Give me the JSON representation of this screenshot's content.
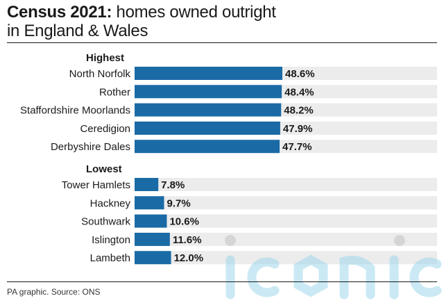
{
  "header": {
    "title_bold": "Census 2021:",
    "title_rest": " homes owned outright",
    "title_line2": "in England & Wales"
  },
  "footer": {
    "source": "PA graphic. Source: ONS"
  },
  "watermark": {
    "text": "iconic"
  },
  "colors": {
    "bar": "#1a6aa5",
    "track": "#ececec",
    "text": "#1a1a1a"
  },
  "chart_data": {
    "type": "bar",
    "orientation": "horizontal",
    "unit": "%",
    "xlim": [
      0,
      100
    ],
    "groups": [
      {
        "label": "Highest",
        "categories": [
          "North Norfolk",
          "Rother",
          "Staffordshire Moorlands",
          "Ceredigion",
          "Derbyshire Dales"
        ],
        "values": [
          48.6,
          48.4,
          48.2,
          47.9,
          47.7
        ],
        "labels": [
          "48.6%",
          "48.4%",
          "48.2%",
          "47.9%",
          "47.7%"
        ]
      },
      {
        "label": "Lowest",
        "categories": [
          "Tower Hamlets",
          "Hackney",
          "Southwark",
          "Islington",
          "Lambeth"
        ],
        "values": [
          7.8,
          9.7,
          10.6,
          11.6,
          12.0
        ],
        "labels": [
          "7.8%",
          "9.7%",
          "10.6%",
          "11.6%",
          "12.0%"
        ]
      }
    ]
  }
}
